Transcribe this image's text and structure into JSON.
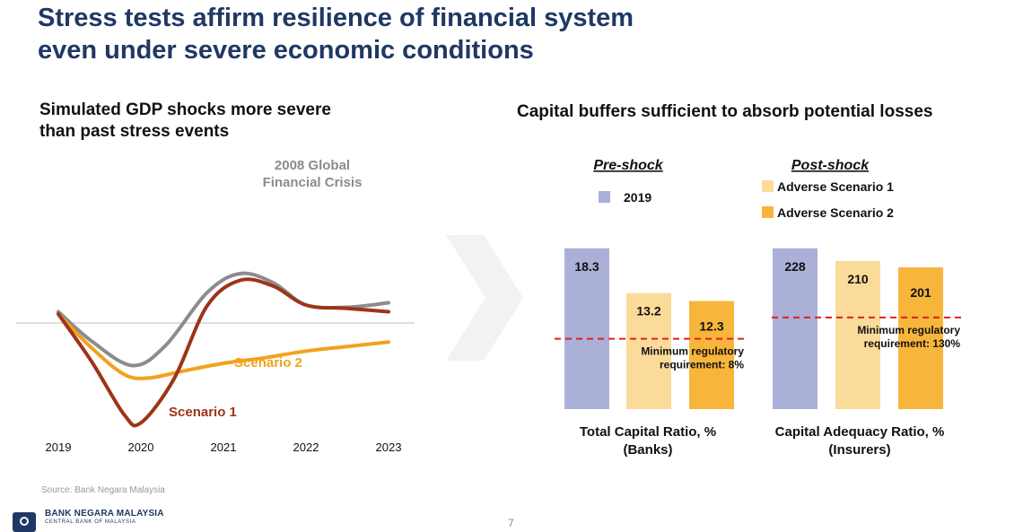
{
  "page": {
    "title_line1": "Stress tests affirm resilience of financial system",
    "title_line2": "even under severe economic conditions",
    "left_heading_line1": "Simulated GDP shocks more severe",
    "left_heading_line2": "than past stress events",
    "right_heading": "Capital buffers sufficient to absorb potential losses",
    "source": "Source: Bank Negara Malaysia",
    "bank_name": "BANK NEGARA MALAYSIA",
    "bank_subname": "CENTRAL BANK OF MALAYSIA",
    "page_number": "7"
  },
  "colors": {
    "title": "#1f3864",
    "gfc": "#8c8c8c",
    "scenario1": "#9e3417",
    "scenario2": "#f2a21b",
    "bar_2019": "#aab0d8",
    "bar_adverse1": "#fbdb9a",
    "bar_adverse2": "#f7b53b",
    "min_line": "#e0201b"
  },
  "chart_data": [
    {
      "type": "line",
      "title": "Simulated GDP shocks more severe than past stress events",
      "x": [
        2019,
        2020,
        2021,
        2022,
        2023
      ],
      "x_tick_labels": [
        "2019",
        "2020",
        "2021",
        "2022",
        "2023"
      ],
      "yaxis_labels_shown": false,
      "series": [
        {
          "name": "2008 Global Financial Crisis",
          "label_line1": "2008 Global",
          "label_line2": "Financial Crisis",
          "x": [
            2019,
            2019.4,
            2019.9,
            2020.3,
            2020.8,
            2021.2,
            2021.6,
            2022.0,
            2022.5,
            2023.0
          ],
          "values": [
            1.0,
            -1.6,
            -3.8,
            -2.0,
            2.7,
            4.4,
            3.6,
            1.6,
            1.4,
            1.8
          ]
        },
        {
          "name": "Scenario 1",
          "label": "Scenario 1",
          "x": [
            2019,
            2019.4,
            2019.8,
            2020.0,
            2020.4,
            2020.8,
            2021.2,
            2021.6,
            2022.0,
            2022.5,
            2023.0
          ],
          "values": [
            0.8,
            -3.4,
            -8.2,
            -8.9,
            -5.0,
            1.5,
            3.8,
            3.3,
            1.6,
            1.3,
            1.0
          ]
        },
        {
          "name": "Scenario 2",
          "label": "Scenario 2",
          "x": [
            2019,
            2019.4,
            2019.8,
            2020.1,
            2020.5,
            2021.0,
            2021.5,
            2022.0,
            2022.5,
            2023.0
          ],
          "values": [
            0.8,
            -2.2,
            -4.6,
            -4.9,
            -4.3,
            -3.6,
            -3.1,
            -2.5,
            -2.1,
            -1.7
          ]
        }
      ]
    },
    {
      "type": "bar",
      "title": "Capital buffers sufficient to absorb potential losses",
      "pre_shock_label": "Pre-shock",
      "post_shock_label": "Post-shock",
      "legend": [
        "2019",
        "Adverse Scenario 1",
        "Adverse Scenario 2"
      ],
      "groups": [
        {
          "name": "Total Capital Ratio, %",
          "label_line1": "Total Capital Ratio, %",
          "label_line2": "(Banks)",
          "categories": [
            "2019",
            "Adverse Scenario 1",
            "Adverse Scenario 2"
          ],
          "values": [
            18.3,
            13.2,
            12.3
          ],
          "value_labels": [
            "18.3",
            "13.2",
            "12.3"
          ],
          "ylim": [
            0,
            19.5
          ],
          "min_regulatory": 8,
          "min_label_line1": "Minimum regulatory",
          "min_label_line2": "requirement: 8%"
        },
        {
          "name": "Capital Adequacy Ratio, %",
          "label_line1": "Capital Adequacy Ratio, %",
          "label_line2": "(Insurers)",
          "categories": [
            "2019",
            "Adverse Scenario 1",
            "Adverse Scenario 2"
          ],
          "values": [
            228,
            210,
            201
          ],
          "value_labels": [
            "228",
            "210",
            "201"
          ],
          "ylim": [
            0,
            243
          ],
          "min_regulatory": 130,
          "min_label_line1": "Minimum regulatory",
          "min_label_line2": "requirement: 130%"
        }
      ]
    }
  ]
}
